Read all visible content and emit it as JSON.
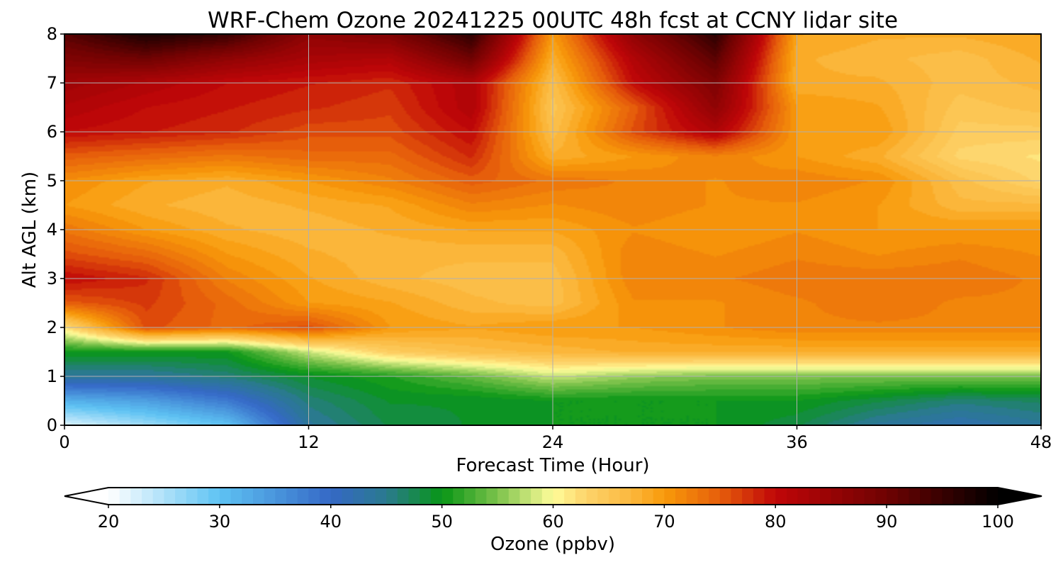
{
  "chart_data": {
    "type": "heatmap",
    "title": "WRF-Chem Ozone  20241225 00UTC 48h fcst at CCNY lidar site",
    "xlabel": "Forecast Time (Hour)",
    "ylabel": "Alt AGL (km)",
    "xlim": [
      0,
      48
    ],
    "ylim": [
      0,
      8
    ],
    "xticks": [
      0,
      12,
      24,
      36,
      48
    ],
    "yticks": [
      0,
      1,
      2,
      3,
      4,
      5,
      6,
      7,
      8
    ],
    "grid": true,
    "x": [
      0,
      4,
      8,
      12,
      16,
      20,
      24,
      28,
      32,
      36,
      40,
      44,
      48
    ],
    "y": [
      0,
      0.5,
      1,
      1.5,
      2,
      2.5,
      3,
      3.5,
      4,
      4.5,
      5,
      5.5,
      6,
      6.5,
      7,
      7.5,
      8
    ],
    "z": [
      [
        22,
        26,
        30,
        44,
        48,
        49,
        50,
        50,
        50,
        48,
        44,
        42,
        44
      ],
      [
        32,
        34,
        38,
        46,
        49,
        49,
        50,
        50,
        50,
        50,
        48,
        46,
        47
      ],
      [
        44,
        44,
        46,
        49,
        51,
        54,
        58,
        56,
        55,
        55,
        55,
        55,
        55
      ],
      [
        50,
        50,
        50,
        58,
        64,
        66,
        67,
        68,
        68,
        68,
        68,
        68,
        68
      ],
      [
        62,
        76,
        74,
        76,
        70,
        69,
        70,
        70,
        71,
        72,
        72,
        72,
        72
      ],
      [
        75,
        77,
        74,
        70,
        69,
        67,
        66,
        71,
        71,
        72,
        73,
        72,
        72
      ],
      [
        80,
        78,
        72,
        69,
        67,
        66,
        66,
        72,
        72,
        73,
        73,
        73,
        72
      ],
      [
        76,
        74,
        70,
        68,
        67,
        67,
        67,
        72,
        71,
        72,
        71,
        72,
        71
      ],
      [
        73,
        70,
        68,
        67,
        68,
        69,
        69,
        71,
        70,
        71,
        70,
        70,
        70
      ],
      [
        70,
        68,
        67,
        68,
        69,
        72,
        71,
        72,
        71,
        71,
        70,
        67,
        67
      ],
      [
        71,
        69,
        68,
        70,
        72,
        75,
        73,
        72,
        71,
        72,
        71,
        66,
        63
      ],
      [
        75,
        74,
        73,
        74,
        74,
        78,
        68,
        70,
        72,
        70,
        68,
        63,
        62
      ],
      [
        80,
        79,
        78,
        76,
        76,
        80,
        66,
        76,
        82,
        70,
        70,
        64,
        64
      ],
      [
        82,
        80,
        79,
        78,
        77,
        82,
        65,
        75,
        86,
        70,
        69,
        65,
        66
      ],
      [
        84,
        82,
        80,
        79,
        78,
        82,
        66,
        80,
        88,
        68,
        68,
        66,
        67
      ],
      [
        88,
        90,
        86,
        83,
        82,
        90,
        68,
        82,
        92,
        68,
        67,
        66,
        68
      ],
      [
        92,
        98,
        95,
        86,
        88,
        96,
        70,
        86,
        96,
        69,
        68,
        68,
        69
      ]
    ],
    "colorbar": {
      "label": "Ozone  (ppbv)",
      "min": 20,
      "max": 100,
      "ticks": [
        20,
        30,
        40,
        50,
        60,
        70,
        80,
        90,
        100
      ],
      "extend": "both",
      "color_stops": [
        {
          "value": 20,
          "color": "#ffffff"
        },
        {
          "value": 30,
          "color": "#5ec3f3"
        },
        {
          "value": 40,
          "color": "#3568c6"
        },
        {
          "value": 45,
          "color": "#2a7a8e"
        },
        {
          "value": 50,
          "color": "#089616"
        },
        {
          "value": 55,
          "color": "#7cc24b"
        },
        {
          "value": 60,
          "color": "#fffd9a"
        },
        {
          "value": 63,
          "color": "#fdd36a"
        },
        {
          "value": 67,
          "color": "#fbb83e"
        },
        {
          "value": 70,
          "color": "#f89a0a"
        },
        {
          "value": 75,
          "color": "#e65e0b"
        },
        {
          "value": 80,
          "color": "#c00608"
        },
        {
          "value": 90,
          "color": "#6f0202"
        },
        {
          "value": 100,
          "color": "#000000"
        }
      ]
    }
  }
}
